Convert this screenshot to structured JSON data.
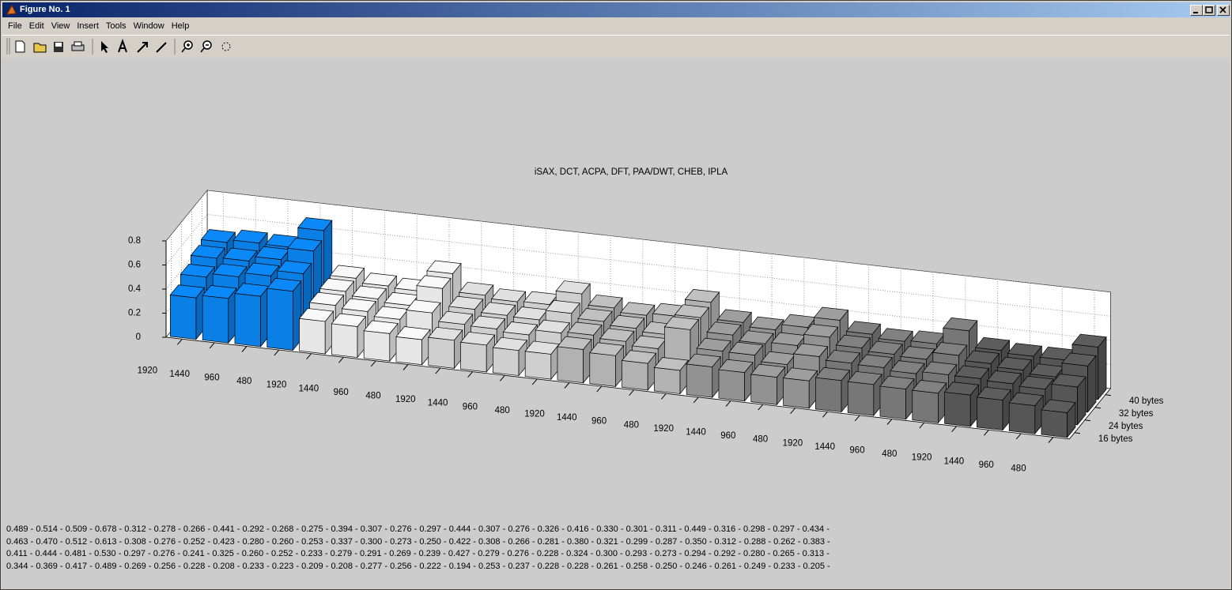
{
  "window": {
    "title": "Figure No. 1",
    "menu": [
      "File",
      "Edit",
      "View",
      "Insert",
      "Tools",
      "Window",
      "Help"
    ]
  },
  "chart_data": {
    "type": "bar3d",
    "title": "iSAX, DCT, ACPA, DFT, PAA/DWT, CHEB, IPLA",
    "categories": [
      "1920",
      "1440",
      "960",
      "480",
      "1920",
      "1440",
      "960",
      "480",
      "1920",
      "1440",
      "960",
      "480",
      "1920",
      "1440",
      "960",
      "480",
      "1920",
      "1440",
      "960",
      "480",
      "1920",
      "1440",
      "960",
      "480",
      "1920",
      "1440",
      "960",
      "480"
    ],
    "group_colors": [
      "#0a7fe6",
      "#e6e6e6",
      "#cfcfcf",
      "#b2b2b2",
      "#929292",
      "#777777",
      "#565656"
    ],
    "series": [
      {
        "name": "40 bytes",
        "values": [
          0.489,
          0.514,
          0.509,
          0.678,
          0.312,
          0.278,
          0.266,
          0.441,
          0.292,
          0.268,
          0.275,
          0.394,
          0.307,
          0.276,
          0.297,
          0.444,
          0.307,
          0.276,
          0.326,
          0.416,
          0.33,
          0.301,
          0.311,
          0.449,
          0.316,
          0.298,
          0.297,
          0.434
        ],
        "value_labels": [
          "0.489",
          "0.514",
          "0.509",
          "0.678",
          "0.312",
          "0.278",
          "0.266",
          "0.441",
          "0.292",
          "0.268",
          "0.275",
          "0.394",
          "0.307",
          "0.276",
          "0.297",
          "0.444",
          "0.307",
          "0.276",
          "0.326",
          "0.416",
          "0.330",
          "0.301",
          "0.311",
          "0.449",
          "0.316",
          "0.298",
          "0.297",
          "0.434"
        ]
      },
      {
        "name": "32 bytes",
        "values": [
          0.463,
          0.47,
          0.512,
          0.613,
          0.308,
          0.276,
          0.252,
          0.423,
          0.28,
          0.26,
          0.253,
          0.337,
          0.3,
          0.273,
          0.25,
          0.422,
          0.308,
          0.266,
          0.281,
          0.38,
          0.321,
          0.299,
          0.287,
          0.35,
          0.312,
          0.288,
          0.262,
          0.383
        ],
        "value_labels": [
          "0.463",
          "0.470",
          "0.512",
          "0.613",
          "0.308",
          "0.276",
          "0.252",
          "0.423",
          "0.280",
          "0.260",
          "0.253",
          "0.337",
          "0.300",
          "0.273",
          "0.250",
          "0.422",
          "0.308",
          "0.266",
          "0.281",
          "0.380",
          "0.321",
          "0.299",
          "0.287",
          "0.350",
          "0.312",
          "0.288",
          "0.262",
          "0.383"
        ]
      },
      {
        "name": "24 bytes",
        "values": [
          0.411,
          0.444,
          0.481,
          0.53,
          0.297,
          0.276,
          0.241,
          0.325,
          0.26,
          0.252,
          0.233,
          0.279,
          0.291,
          0.269,
          0.239,
          0.427,
          0.279,
          0.276,
          0.228,
          0.324,
          0.3,
          0.293,
          0.273,
          0.294,
          0.292,
          0.28,
          0.265,
          0.313
        ],
        "value_labels": [
          "0.411",
          "0.444",
          "0.481",
          "0.530",
          "0.297",
          "0.276",
          "0.241",
          "0.325",
          "0.260",
          "0.252",
          "0.233",
          "0.279",
          "0.291",
          "0.269",
          "0.239",
          "0.427",
          "0.279",
          "0.276",
          "0.228",
          "0.324",
          "0.300",
          "0.293",
          "0.273",
          "0.294",
          "0.292",
          "0.280",
          "0.265",
          "0.313"
        ]
      },
      {
        "name": "16 bytes",
        "values": [
          0.344,
          0.369,
          0.417,
          0.489,
          0.269,
          0.256,
          0.228,
          0.208,
          0.233,
          0.223,
          0.209,
          0.208,
          0.277,
          0.256,
          0.222,
          0.194,
          0.253,
          0.237,
          0.228,
          0.228,
          0.261,
          0.258,
          0.25,
          0.246,
          0.261,
          0.249,
          0.233,
          0.205
        ],
        "value_labels": [
          "0.344",
          "0.369",
          "0.417",
          "0.489",
          "0.269",
          "0.256",
          "0.228",
          "0.208",
          "0.233",
          "0.223",
          "0.209",
          "0.208",
          "0.277",
          "0.256",
          "0.222",
          "0.194",
          "0.253",
          "0.237",
          "0.228",
          "0.228",
          "0.261",
          "0.258",
          "0.250",
          "0.246",
          "0.261",
          "0.249",
          "0.233",
          "0.205"
        ]
      }
    ],
    "value_separator": " - ",
    "zlim": [
      0,
      0.8
    ],
    "zticks": [
      0,
      0.2,
      0.4,
      0.6,
      0.8
    ],
    "grid": true
  }
}
